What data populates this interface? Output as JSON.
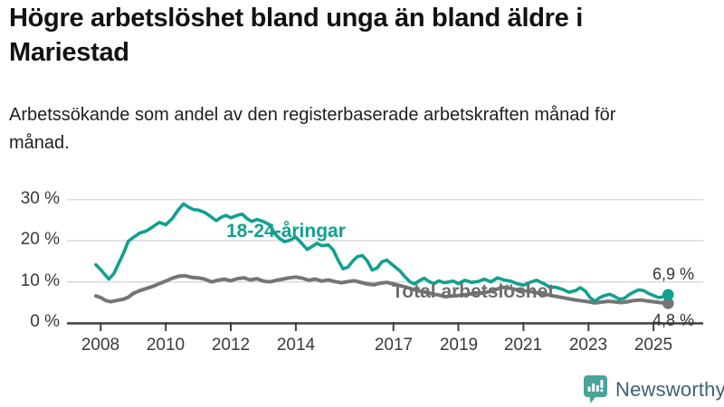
{
  "header": {
    "title": "Högre arbetslöshet bland unga än bland äldre i Mariestad",
    "subtitle": "Arbetssökande som andel av den registerbaserade arbetskraften månad för månad."
  },
  "chart_data": {
    "type": "line",
    "title": "Högre arbetslöshet bland unga än bland äldre i Mariestad",
    "xlabel": "",
    "ylabel": "",
    "x_axis": {
      "ticks": [
        2008,
        2010,
        2012,
        2014,
        2017,
        2019,
        2021,
        2023,
        2025
      ],
      "range": [
        2007.6,
        2025.9
      ]
    },
    "y_axis": {
      "ticks": [
        0,
        10,
        20,
        30
      ],
      "tick_suffix": " %",
      "range": [
        0,
        32
      ],
      "gridlines": true
    },
    "style": {
      "grid_color": "#dadada",
      "axis_color": "#3f3f3f",
      "background": "#ffffff"
    },
    "legend_position": "direct-labels-on-chart",
    "series": [
      {
        "name": "18-24-åringar",
        "color": "#12a08f",
        "label_color": "#12a08f",
        "width": 3.6,
        "end_label": "6,9 %",
        "end_value": 6.9,
        "points": [
          [
            2007.85,
            14.2
          ],
          [
            2008.0,
            13.0
          ],
          [
            2008.15,
            11.6
          ],
          [
            2008.25,
            10.7
          ],
          [
            2008.4,
            12.0
          ],
          [
            2008.55,
            14.5
          ],
          [
            2008.7,
            17.0
          ],
          [
            2008.85,
            19.9
          ],
          [
            2009.0,
            20.8
          ],
          [
            2009.2,
            21.9
          ],
          [
            2009.4,
            22.4
          ],
          [
            2009.6,
            23.4
          ],
          [
            2009.8,
            24.5
          ],
          [
            2010.0,
            23.9
          ],
          [
            2010.2,
            25.4
          ],
          [
            2010.4,
            27.7
          ],
          [
            2010.55,
            29.0
          ],
          [
            2010.7,
            28.2
          ],
          [
            2010.85,
            27.6
          ],
          [
            2011.0,
            27.5
          ],
          [
            2011.2,
            26.9
          ],
          [
            2011.4,
            25.8
          ],
          [
            2011.55,
            24.9
          ],
          [
            2011.7,
            25.7
          ],
          [
            2011.85,
            26.2
          ],
          [
            2012.0,
            25.6
          ],
          [
            2012.2,
            26.2
          ],
          [
            2012.35,
            26.5
          ],
          [
            2012.5,
            25.4
          ],
          [
            2012.65,
            24.7
          ],
          [
            2012.8,
            25.2
          ],
          [
            2013.0,
            24.7
          ],
          [
            2013.2,
            23.9
          ],
          [
            2013.35,
            21.8
          ],
          [
            2013.5,
            20.6
          ],
          [
            2013.65,
            19.8
          ],
          [
            2013.8,
            20.1
          ],
          [
            2014.0,
            20.9
          ],
          [
            2014.2,
            19.2
          ],
          [
            2014.35,
            17.9
          ],
          [
            2014.5,
            18.6
          ],
          [
            2014.65,
            19.4
          ],
          [
            2014.8,
            18.8
          ],
          [
            2015.0,
            19.0
          ],
          [
            2015.15,
            17.8
          ],
          [
            2015.3,
            15.3
          ],
          [
            2015.45,
            13.2
          ],
          [
            2015.6,
            13.6
          ],
          [
            2015.75,
            15.1
          ],
          [
            2015.9,
            16.2
          ],
          [
            2016.05,
            16.4
          ],
          [
            2016.2,
            15.1
          ],
          [
            2016.35,
            12.9
          ],
          [
            2016.5,
            13.4
          ],
          [
            2016.65,
            14.9
          ],
          [
            2016.8,
            15.3
          ],
          [
            2017.0,
            14.0
          ],
          [
            2017.2,
            12.7
          ],
          [
            2017.35,
            11.3
          ],
          [
            2017.5,
            10.1
          ],
          [
            2017.65,
            9.5
          ],
          [
            2017.8,
            10.3
          ],
          [
            2017.95,
            10.9
          ],
          [
            2018.1,
            10.1
          ],
          [
            2018.25,
            9.6
          ],
          [
            2018.4,
            10.3
          ],
          [
            2018.55,
            9.8
          ],
          [
            2018.7,
            10.0
          ],
          [
            2018.85,
            10.2
          ],
          [
            2019.0,
            9.6
          ],
          [
            2019.2,
            10.4
          ],
          [
            2019.4,
            9.9
          ],
          [
            2019.6,
            10.1
          ],
          [
            2019.8,
            10.7
          ],
          [
            2020.0,
            10.0
          ],
          [
            2020.2,
            11.0
          ],
          [
            2020.4,
            10.5
          ],
          [
            2020.6,
            10.2
          ],
          [
            2020.8,
            9.6
          ],
          [
            2021.0,
            9.2
          ],
          [
            2021.2,
            9.9
          ],
          [
            2021.4,
            10.4
          ],
          [
            2021.6,
            9.7
          ],
          [
            2021.8,
            8.8
          ],
          [
            2022.0,
            8.7
          ],
          [
            2022.2,
            8.2
          ],
          [
            2022.4,
            7.5
          ],
          [
            2022.6,
            7.9
          ],
          [
            2022.75,
            8.6
          ],
          [
            2022.9,
            7.8
          ],
          [
            2023.05,
            6.2
          ],
          [
            2023.2,
            5.3
          ],
          [
            2023.35,
            6.2
          ],
          [
            2023.5,
            6.7
          ],
          [
            2023.65,
            7.0
          ],
          [
            2023.8,
            6.5
          ],
          [
            2023.95,
            5.8
          ],
          [
            2024.1,
            6.0
          ],
          [
            2024.25,
            6.9
          ],
          [
            2024.4,
            7.6
          ],
          [
            2024.55,
            8.1
          ],
          [
            2024.7,
            7.9
          ],
          [
            2024.85,
            7.2
          ],
          [
            2025.0,
            6.7
          ],
          [
            2025.15,
            6.2
          ],
          [
            2025.3,
            6.4
          ],
          [
            2025.45,
            6.9
          ]
        ]
      },
      {
        "name": "Total arbetslöshet",
        "color": "#757575",
        "label_color": "#6e6e6e",
        "width": 4,
        "end_label": "4,8 %",
        "end_value": 4.8,
        "points": [
          [
            2007.85,
            6.6
          ],
          [
            2008.0,
            6.2
          ],
          [
            2008.15,
            5.5
          ],
          [
            2008.3,
            5.2
          ],
          [
            2008.5,
            5.5
          ],
          [
            2008.7,
            5.8
          ],
          [
            2008.85,
            6.3
          ],
          [
            2009.0,
            7.2
          ],
          [
            2009.2,
            7.9
          ],
          [
            2009.4,
            8.4
          ],
          [
            2009.6,
            8.9
          ],
          [
            2009.8,
            9.6
          ],
          [
            2010.0,
            10.2
          ],
          [
            2010.2,
            10.9
          ],
          [
            2010.4,
            11.4
          ],
          [
            2010.6,
            11.5
          ],
          [
            2010.8,
            11.1
          ],
          [
            2011.0,
            11.0
          ],
          [
            2011.2,
            10.7
          ],
          [
            2011.4,
            10.0
          ],
          [
            2011.6,
            10.4
          ],
          [
            2011.8,
            10.7
          ],
          [
            2012.0,
            10.3
          ],
          [
            2012.2,
            10.8
          ],
          [
            2012.4,
            11.0
          ],
          [
            2012.6,
            10.5
          ],
          [
            2012.8,
            10.8
          ],
          [
            2013.0,
            10.2
          ],
          [
            2013.2,
            10.0
          ],
          [
            2013.4,
            10.4
          ],
          [
            2013.6,
            10.7
          ],
          [
            2013.8,
            11.0
          ],
          [
            2014.0,
            11.2
          ],
          [
            2014.2,
            10.9
          ],
          [
            2014.4,
            10.4
          ],
          [
            2014.6,
            10.7
          ],
          [
            2014.8,
            10.2
          ],
          [
            2015.0,
            10.5
          ],
          [
            2015.2,
            10.1
          ],
          [
            2015.4,
            9.8
          ],
          [
            2015.6,
            10.1
          ],
          [
            2015.8,
            10.3
          ],
          [
            2016.0,
            9.9
          ],
          [
            2016.2,
            9.5
          ],
          [
            2016.4,
            9.3
          ],
          [
            2016.6,
            9.7
          ],
          [
            2016.8,
            9.9
          ],
          [
            2017.0,
            9.5
          ],
          [
            2017.2,
            9.1
          ],
          [
            2017.4,
            8.7
          ],
          [
            2017.6,
            8.2
          ],
          [
            2017.8,
            7.8
          ],
          [
            2018.0,
            7.5
          ],
          [
            2018.2,
            7.1
          ],
          [
            2018.4,
            6.8
          ],
          [
            2018.6,
            6.4
          ],
          [
            2018.8,
            6.6
          ],
          [
            2019.0,
            6.7
          ],
          [
            2019.2,
            6.9
          ],
          [
            2019.4,
            7.1
          ],
          [
            2019.6,
            7.2
          ],
          [
            2019.8,
            7.4
          ],
          [
            2020.0,
            7.7
          ],
          [
            2020.2,
            8.3
          ],
          [
            2020.4,
            8.7
          ],
          [
            2020.6,
            8.5
          ],
          [
            2020.8,
            8.1
          ],
          [
            2021.0,
            7.9
          ],
          [
            2021.2,
            7.7
          ],
          [
            2021.4,
            7.4
          ],
          [
            2021.6,
            7.1
          ],
          [
            2021.8,
            6.8
          ],
          [
            2022.0,
            6.5
          ],
          [
            2022.2,
            6.2
          ],
          [
            2022.4,
            5.9
          ],
          [
            2022.6,
            5.6
          ],
          [
            2022.8,
            5.4
          ],
          [
            2023.0,
            5.2
          ],
          [
            2023.2,
            4.9
          ],
          [
            2023.4,
            5.1
          ],
          [
            2023.6,
            5.3
          ],
          [
            2023.8,
            5.2
          ],
          [
            2024.0,
            5.0
          ],
          [
            2024.2,
            5.2
          ],
          [
            2024.4,
            5.5
          ],
          [
            2024.6,
            5.6
          ],
          [
            2024.8,
            5.4
          ],
          [
            2025.0,
            5.2
          ],
          [
            2025.2,
            5.0
          ],
          [
            2025.45,
            4.8
          ]
        ]
      }
    ]
  },
  "footer": {
    "brand": "Newsworthy",
    "logo_color": "#4aa29a",
    "wordmark_color": "#3e6173"
  }
}
